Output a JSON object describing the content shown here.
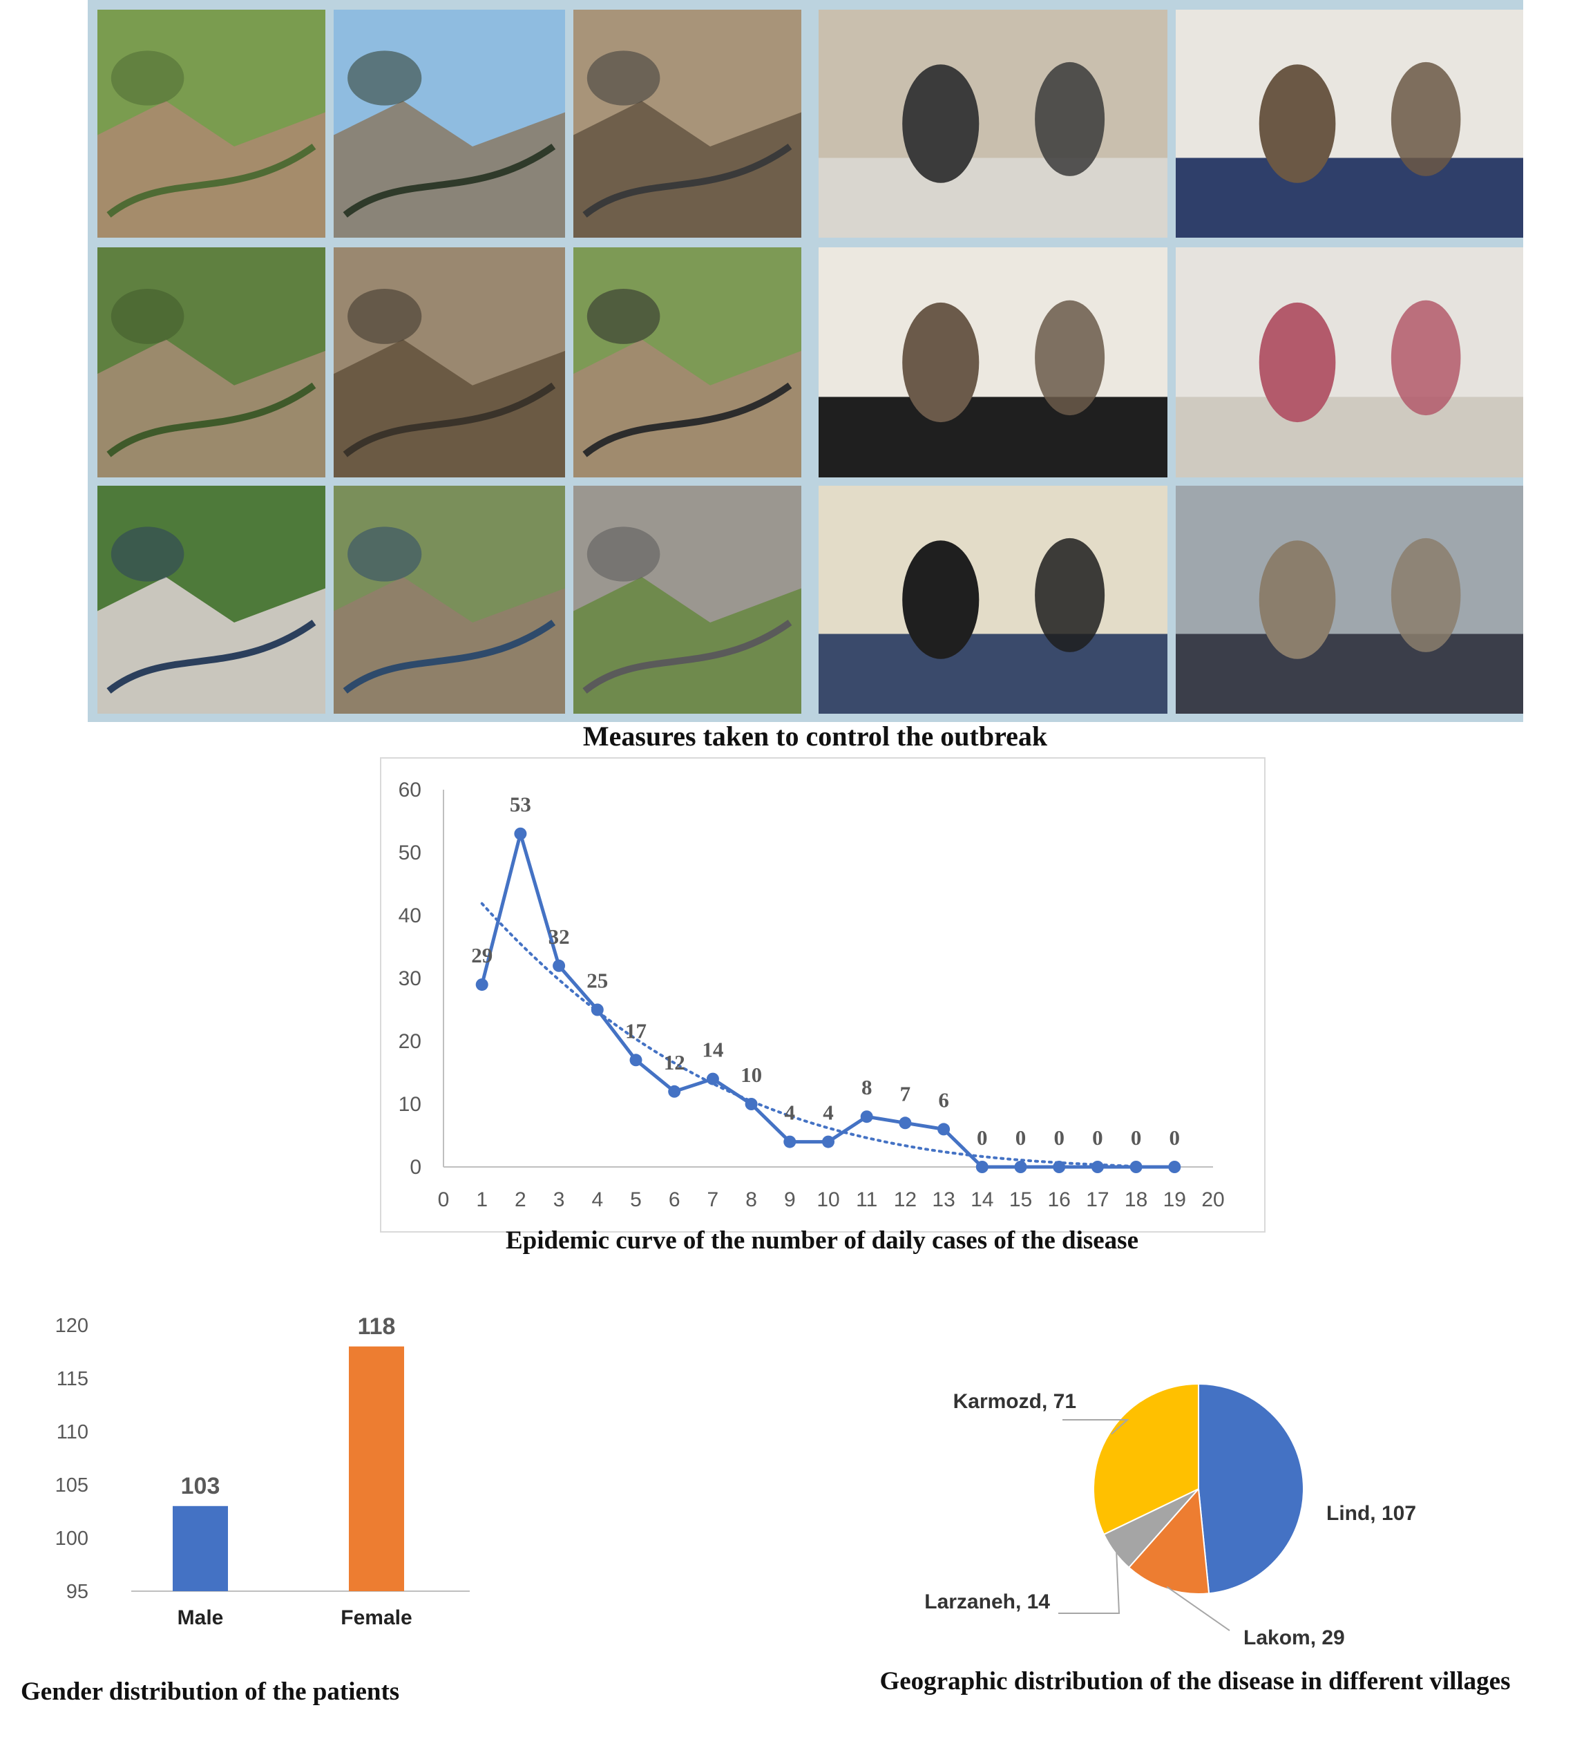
{
  "collage": {
    "caption": "Measures taken to control the outbreak",
    "left_panel_photos": [
      "water-tank-with-pipes",
      "people-on-water-reservoir",
      "pipes-on-dirt-slope",
      "overgrown-stream-bed",
      "broken-pipes-on-slope",
      "hillside-with-pipes",
      "people-inspecting-tank",
      "pipes-in-stream",
      "concrete-tank-wall"
    ],
    "right_panel_photos": [
      "people-in-village-lane",
      "health-worker-at-table",
      "patients-in-clinic",
      "patient-on-iv-drip",
      "clinic-desk-consultation",
      "villager-by-stone-wall"
    ]
  },
  "chart_data": [
    {
      "type": "line",
      "title": "Epidemic curve of the number of daily cases of the disease",
      "x": [
        1,
        2,
        3,
        4,
        5,
        6,
        7,
        8,
        9,
        10,
        11,
        12,
        13,
        14,
        15,
        16,
        17,
        18,
        19
      ],
      "values": [
        29,
        53,
        32,
        25,
        17,
        12,
        14,
        10,
        4,
        4,
        8,
        7,
        6,
        0,
        0,
        0,
        0,
        0,
        0
      ],
      "trendline": "polynomial (dotted)",
      "xlim": [
        0,
        20
      ],
      "ylim": [
        0,
        60
      ],
      "x_ticks": [
        "0",
        "1",
        "2",
        "3",
        "4",
        "5",
        "6",
        "7",
        "8",
        "9",
        "10",
        "11",
        "12",
        "13",
        "14",
        "15",
        "16",
        "17",
        "18",
        "19",
        "20"
      ],
      "y_ticks": [
        "0",
        "10",
        "20",
        "30",
        "40",
        "50",
        "60"
      ],
      "data_labels": [
        "29",
        "53",
        "32",
        "25",
        "17",
        "12",
        "14",
        "10",
        "4",
        "4",
        "8",
        "7",
        "6",
        "0",
        "0",
        "0",
        "0",
        "0",
        "0"
      ],
      "grid": false,
      "color": "#4472c4"
    },
    {
      "type": "bar",
      "title": "Gender distribution of the patients",
      "categories": [
        "Male",
        "Female"
      ],
      "values": [
        103,
        118
      ],
      "data_labels": [
        "103",
        "118"
      ],
      "colors": [
        "#4472c4",
        "#ed7d31"
      ],
      "ylim": [
        95,
        120
      ],
      "y_ticks": [
        "95",
        "100",
        "105",
        "110",
        "115",
        "120"
      ],
      "grid": false
    },
    {
      "type": "pie",
      "title": "Geographic distribution of the disease in different villages",
      "categories": [
        "Lind",
        "Lakom",
        "Larzaneh",
        "Karmozd"
      ],
      "values": [
        107,
        29,
        14,
        71
      ],
      "labels": [
        "Lind, 107",
        "Lakom, 29",
        "Larzaneh, 14",
        "Karmozd, 71"
      ],
      "colors": [
        "#4472c4",
        "#ed7d31",
        "#a5a5a5",
        "#ffc000"
      ]
    }
  ]
}
